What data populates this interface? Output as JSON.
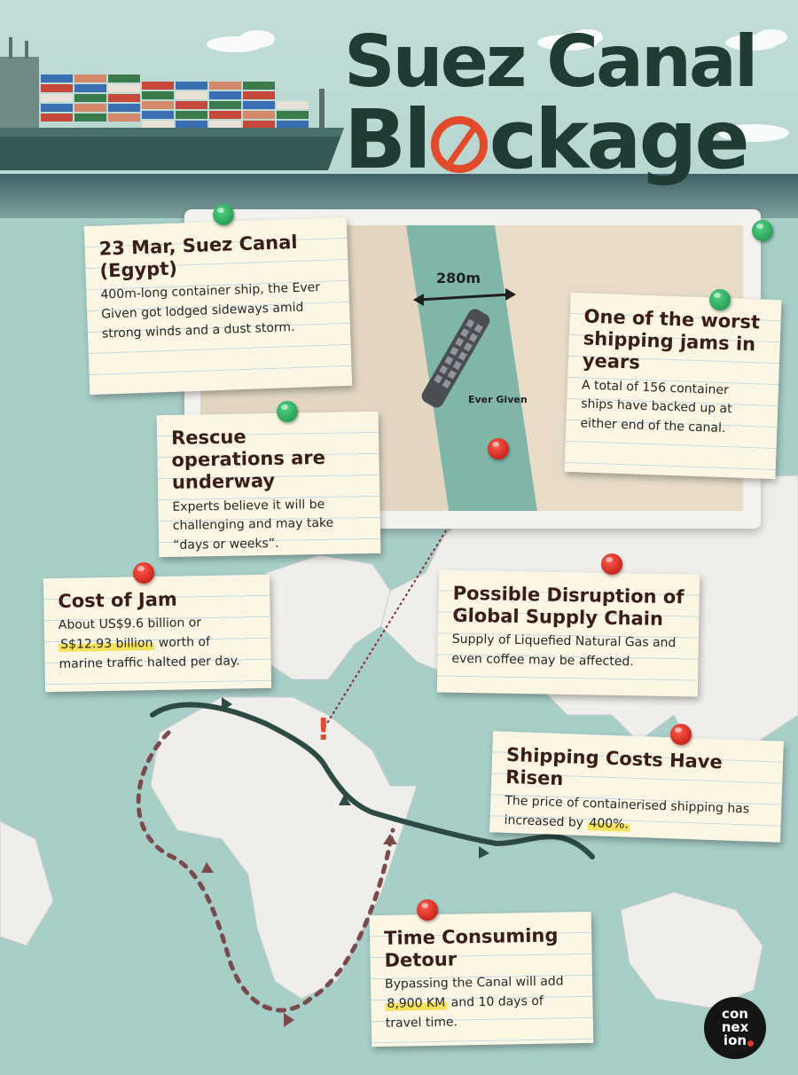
{
  "title": {
    "line1": "Suez Canal",
    "line2_pre": "Bl",
    "line2_post": "ckage"
  },
  "canal_width_label": "280m",
  "ship_label": "Ever Given",
  "notes": {
    "event": {
      "heading": "23 Mar, Suez Canal (Egypt)",
      "body": "400m-long container ship, the Ever Given got lodged sideways amid strong winds and a dust storm."
    },
    "worst": {
      "heading": "One of the worst shipping jams in years",
      "body": "A total of 156 container ships have backed up at either end of the canal."
    },
    "rescue": {
      "heading": "Rescue operations are underway",
      "body": "Experts believe it will be challenging and may take “days or weeks”."
    },
    "cost": {
      "heading": "Cost of Jam",
      "body_pre": "About US$9.6 billion or",
      "body_highlight": "S$12.93 billion",
      "body_post": "worth of marine traffic halted per day."
    },
    "supply": {
      "heading": "Possible Disruption of Global Supply Chain",
      "body": "Supply of Liquefied Natural Gas and even coffee may be affected."
    },
    "shipping": {
      "heading": "Shipping Costs Have Risen",
      "body_pre": "The price of containerised shipping has increased by",
      "body_highlight": "400%."
    },
    "detour": {
      "heading": "Time Consuming Detour",
      "body_pre": "Bypassing the Canal will add",
      "body_highlight": "8,900 KM",
      "body_post": "and 10 days of travel time."
    }
  },
  "map_marker": "!",
  "logo": {
    "lines": [
      "con",
      "nex",
      "ion"
    ]
  },
  "colors": {
    "title": "#1f3b34",
    "accent_red": "#e14b2b",
    "route_solid": "#2d4a45",
    "route_dotted": "#7b4a4d",
    "pin_green": "#2aa35a",
    "pin_red": "#d0211b",
    "highlight": "#f4e35a"
  }
}
